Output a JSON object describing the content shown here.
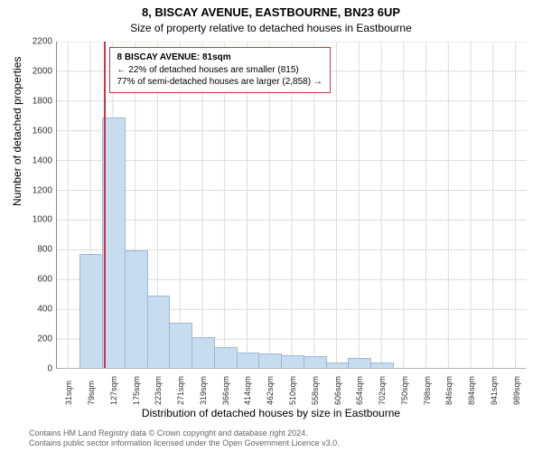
{
  "chart": {
    "type": "histogram",
    "title_main": "8, BISCAY AVENUE, EASTBOURNE, BN23 6UP",
    "title_sub": "Size of property relative to detached houses in Eastbourne",
    "title_fontsize": 13,
    "subtitle_fontsize": 12,
    "ylabel": "Number of detached properties",
    "xlabel": "Distribution of detached houses by size in Eastbourne",
    "label_fontsize": 12,
    "ylim": [
      0,
      2200
    ],
    "ytick_step": 200,
    "yticks": [
      0,
      200,
      400,
      600,
      800,
      1000,
      1200,
      1400,
      1600,
      1800,
      2000,
      2200
    ],
    "xticks": [
      "31sqm",
      "79sqm",
      "127sqm",
      "175sqm",
      "223sqm",
      "271sqm",
      "319sqm",
      "366sqm",
      "414sqm",
      "462sqm",
      "510sqm",
      "558sqm",
      "606sqm",
      "654sqm",
      "702sqm",
      "750sqm",
      "798sqm",
      "846sqm",
      "894sqm",
      "941sqm",
      "989sqm"
    ],
    "bar_values": [
      0,
      760,
      1680,
      785,
      480,
      300,
      200,
      135,
      100,
      90,
      80,
      70,
      30,
      60,
      30,
      0,
      0,
      0,
      0,
      0,
      0,
      0
    ],
    "bar_color": "#c8dcf0",
    "bar_border_color": "#9bb8d8",
    "background_color": "#ffffff",
    "grid_color": "#dcdcdc",
    "axis_color": "#888888",
    "bar_width_ratio": 0.96,
    "marker": {
      "position_index": 2.08,
      "color": "#cc3344"
    },
    "callout": {
      "border_color": "#cc3344",
      "lines": [
        "8 BISCAY AVENUE: 81sqm",
        "← 22% of detached houses are smaller (815)",
        "77% of semi-detached houses are larger (2,858) →"
      ]
    },
    "footer": [
      "Contains HM Land Registry data © Crown copyright and database right 2024.",
      "Contains public sector information licensed under the Open Government Licence v3.0."
    ]
  }
}
